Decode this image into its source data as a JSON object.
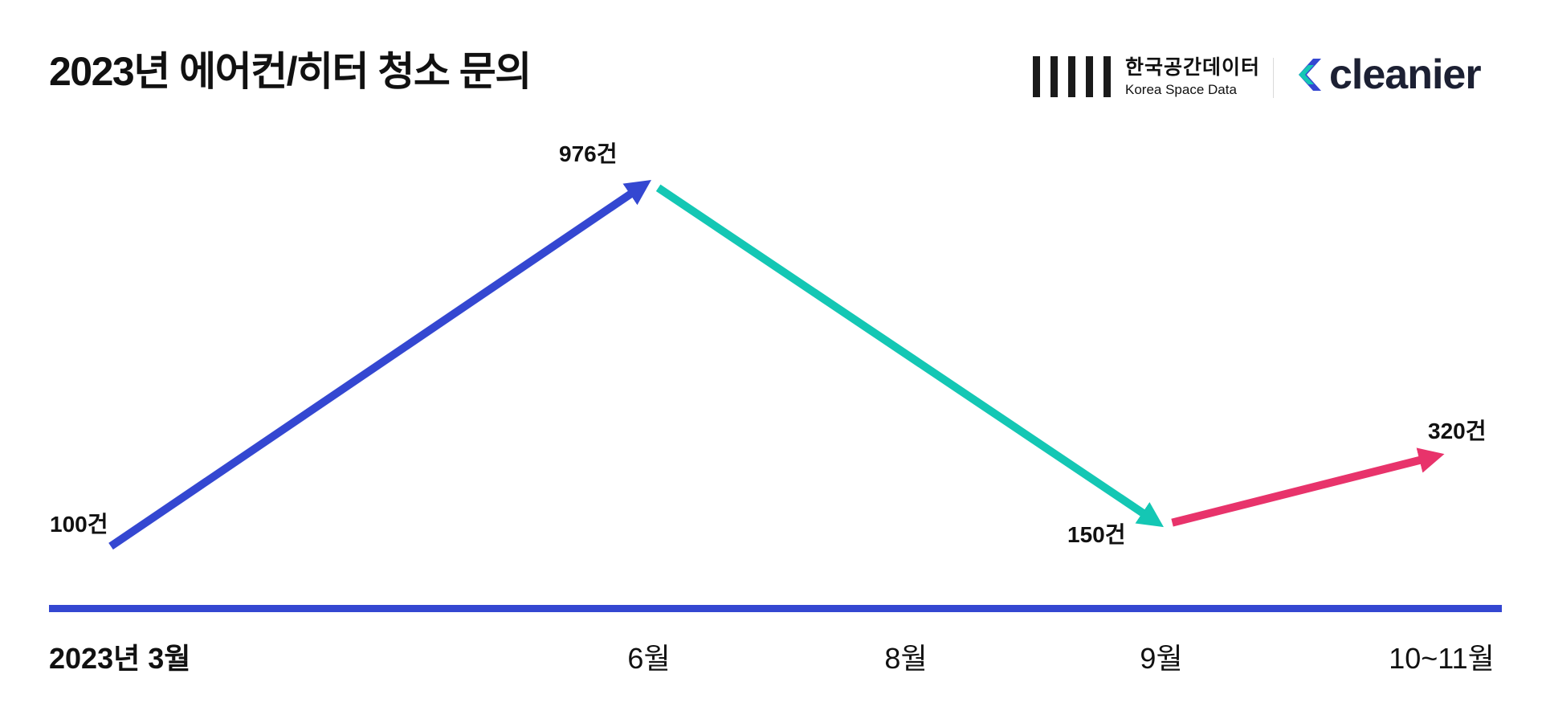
{
  "title": "2023년 에어컨/히터 청소 문의",
  "logos": {
    "ksd_korean": "한국공간데이터",
    "ksd_english": "Korea Space Data",
    "cleanier": "cleanier"
  },
  "colors": {
    "baseline": "#3447d1",
    "rise": "#3447d1",
    "fall": "#14c7b4",
    "rebound": "#e8336b",
    "text": "#111111"
  },
  "chart_data": {
    "type": "line",
    "title": "2023년 에어컨/히터 청소 문의",
    "xlabel": "",
    "ylabel": "",
    "categories": [
      "2023년 3월",
      "6월",
      "8월",
      "9월",
      "10~11월"
    ],
    "points": [
      {
        "x": "2023년 3월",
        "y": 100,
        "label": "100건"
      },
      {
        "x": "6월",
        "y": 976,
        "label": "976건"
      },
      {
        "x": "9월",
        "y": 150,
        "label": "150건"
      },
      {
        "x": "10~11월",
        "y": 320,
        "label": "320건"
      }
    ],
    "segments": [
      {
        "from": 0,
        "to": 1,
        "color": "#3447d1"
      },
      {
        "from": 1,
        "to": 2,
        "color": "#14c7b4"
      },
      {
        "from": 2,
        "to": 3,
        "color": "#e8336b"
      }
    ],
    "grid": false
  }
}
